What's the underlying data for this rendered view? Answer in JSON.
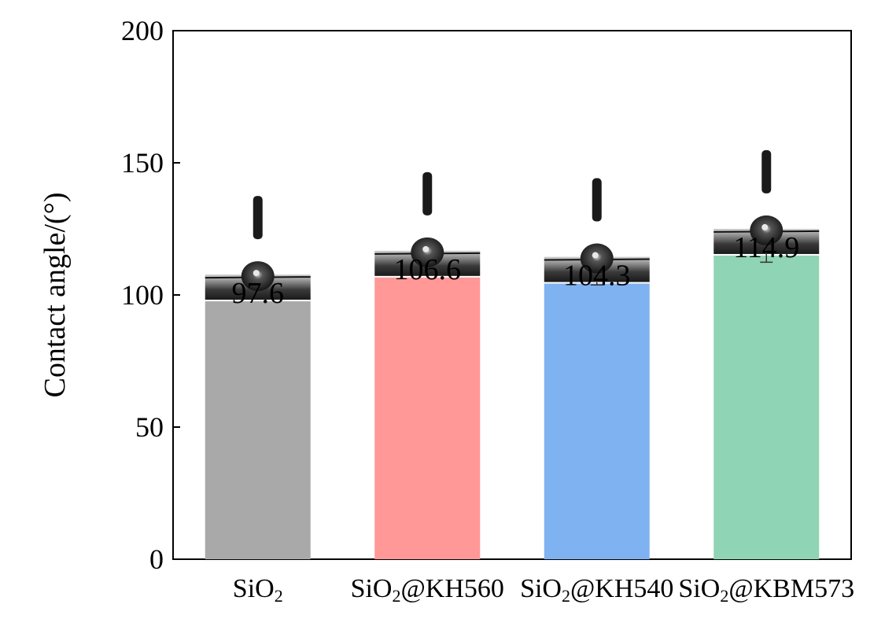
{
  "chart_data": {
    "type": "bar",
    "title": "",
    "xlabel": "",
    "ylabel": "Contact angle/(°)",
    "ylim": [
      0,
      200
    ],
    "yticks": [
      0,
      50,
      100,
      150,
      200
    ],
    "grid": false,
    "categories": [
      {
        "base": "SiO",
        "sub": "2",
        "rest": ""
      },
      {
        "base": "SiO",
        "sub": "2",
        "rest": "@KH560"
      },
      {
        "base": "SiO",
        "sub": "2",
        "rest": "@KH540"
      },
      {
        "base": "SiO",
        "sub": "2",
        "rest": "@KBM573"
      }
    ],
    "values": [
      97.6,
      106.6,
      104.3,
      114.9
    ],
    "error": [
      0,
      0,
      0.5,
      2.5
    ],
    "value_labels": [
      "97.6",
      "106.6",
      "104.3",
      "114.9"
    ],
    "colors": [
      "#a9a9a9",
      "#ff9896",
      "#7fb2f0",
      "#8fd4b4"
    ],
    "insets": "water droplet photo on substrate above each bar"
  }
}
